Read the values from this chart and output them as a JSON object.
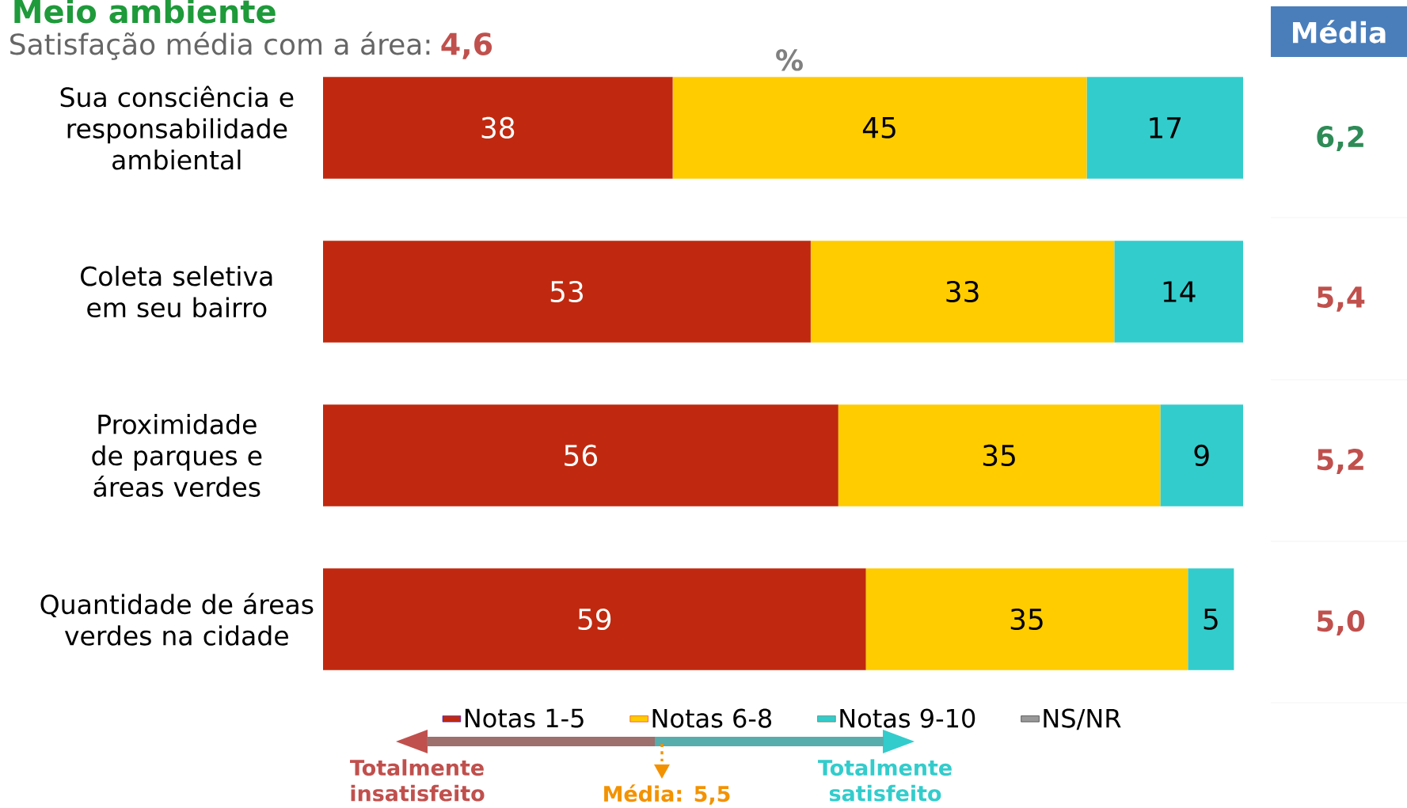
{
  "chart_data": {
    "type": "bar",
    "orientation": "horizontal",
    "stacked": true,
    "title": "Meio ambiente",
    "subtitle": "Satisfação média com a área:",
    "categories": [
      "Sua consciência e responsabilidade ambiental",
      "Coleta seletiva em seu bairro",
      "Proximidade de parques e áreas verdes",
      "Quantidade de áreas verdes na cidade"
    ],
    "series": [
      {
        "name": "Notas 1-5",
        "color": "#c0290f",
        "values": [
          38,
          53,
          56,
          59
        ]
      },
      {
        "name": "Notas 6-8",
        "color": "#ffcc00",
        "values": [
          45,
          33,
          35,
          35
        ]
      },
      {
        "name": "Notas 9-10",
        "color": "#33cccc",
        "values": [
          17,
          14,
          9,
          5
        ]
      },
      {
        "name": "NS/NR",
        "color": "#999999",
        "values": [
          null,
          null,
          null,
          null
        ]
      }
    ],
    "tick_labels": "y",
    "data_labels": true,
    "legend": "bottom",
    "annotations": [
      "4,6",
      "%",
      "Média",
      "6,2",
      "5,4",
      "5,2",
      "5,0",
      "Totalmente insatisfeito",
      "Média: 5,5",
      "Totalmente satisfeito"
    ]
  }
}
